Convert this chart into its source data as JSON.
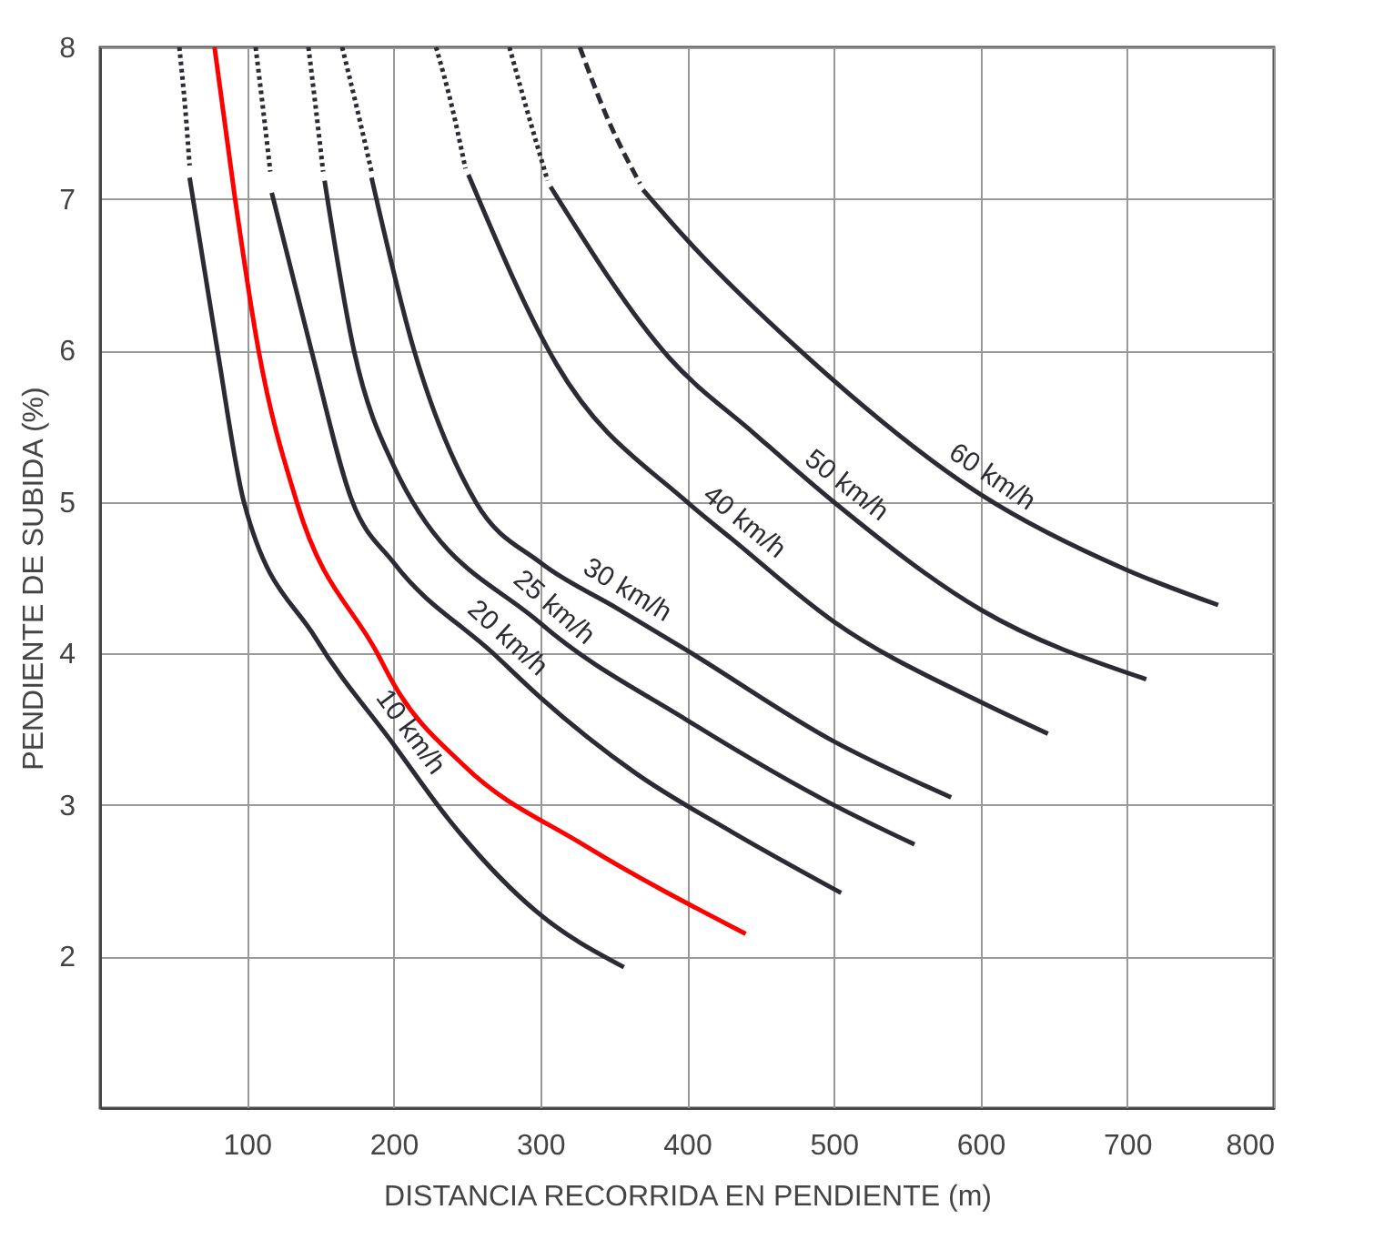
{
  "chart_data": {
    "type": "line",
    "xlabel": "DISTANCIA RECORRIDA EN PENDIENTE (m)",
    "ylabel": "PENDIENTE DE SUBIDA (%)",
    "xlim": [
      0,
      800
    ],
    "xticks": [
      100,
      200,
      300,
      400,
      500,
      600,
      700,
      800
    ],
    "ylim": [
      1,
      8
    ],
    "yticks": [
      2,
      3,
      4,
      5,
      6,
      7,
      8
    ],
    "grid": true,
    "legend": false,
    "marker": "none",
    "series": [
      {
        "color": "#2b2b33",
        "line_style": "dotted",
        "x": [
          54,
          58,
          61
        ],
        "values": [
          8,
          7.6,
          7.22
        ]
      },
      {
        "name": "10 km/h",
        "color": "#2b2b33",
        "line_style": "solid",
        "x": [
          61,
          80,
          98,
          147,
          200,
          238,
          297,
          357
        ],
        "values": [
          7.14,
          6,
          5,
          4.1,
          3.4,
          2.9,
          2.3,
          1.93
        ]
      },
      {
        "color": "#ff0000",
        "line_style": "solid",
        "x": [
          78,
          92,
          108,
          134,
          189,
          200,
          248,
          329,
          440
        ],
        "values": [
          8,
          7,
          6,
          5,
          4,
          3.8,
          3.26,
          2.74,
          2.15
        ]
      },
      {
        "color": "#2b2b33",
        "line_style": "dotted",
        "x": [
          106,
          111,
          116
        ],
        "values": [
          8,
          7.6,
          7.18
        ]
      },
      {
        "name": "20 km/h",
        "color": "#2b2b33",
        "line_style": "solid",
        "x": [
          117,
          144,
          172,
          200,
          268,
          300,
          365,
          431,
          505
        ],
        "values": [
          7.04,
          6,
          5,
          4.6,
          4,
          3.71,
          3.21,
          2.82,
          2.42
        ]
      },
      {
        "color": "#2b2b33",
        "line_style": "dotted",
        "x": [
          142,
          147,
          152
        ],
        "values": [
          8,
          7.6,
          7.18
        ]
      },
      {
        "name": "25 km/h",
        "color": "#2b2b33",
        "line_style": "solid",
        "x": [
          153,
          173,
          200,
          300,
          400,
          500,
          555
        ],
        "values": [
          7.12,
          6,
          5.24,
          4.2,
          3.56,
          3.0,
          2.74
        ]
      },
      {
        "color": "#2b2b33",
        "line_style": "dotted",
        "x": [
          165,
          175,
          185
        ],
        "values": [
          8,
          7.6,
          7.18
        ]
      },
      {
        "name": "30 km/h",
        "color": "#2b2b33",
        "line_style": "solid",
        "x": [
          185,
          214,
          256,
          300,
          352,
          400,
          500,
          580
        ],
        "values": [
          7.14,
          6,
          5,
          4.6,
          4.3,
          4.02,
          3.42,
          3.05
        ]
      },
      {
        "color": "#2b2b33",
        "line_style": "dotted",
        "x": [
          229,
          240,
          249
        ],
        "values": [
          8,
          7.6,
          7.2
        ]
      },
      {
        "name": "40 km/h",
        "color": "#2b2b33",
        "line_style": "solid",
        "x": [
          251,
          311,
          400,
          430,
          500,
          600,
          646
        ],
        "values": [
          7.16,
          5.91,
          5.0,
          4.76,
          4.21,
          3.68,
          3.47
        ]
      },
      {
        "color": "#2b2b33",
        "line_style": "dotted",
        "x": [
          279,
          292,
          305
        ],
        "values": [
          8,
          7.55,
          7.12
        ]
      },
      {
        "name": "50 km/h",
        "color": "#2b2b33",
        "line_style": "solid",
        "x": [
          307,
          388,
          446,
          500,
          600,
          713
        ],
        "values": [
          7.08,
          5.95,
          5.45,
          5.0,
          4.29,
          3.83
        ]
      },
      {
        "color": "#2b2b33",
        "line_style": "dashed",
        "x": [
          327,
          345,
          368
        ],
        "values": [
          8,
          7.55,
          7.1
        ]
      },
      {
        "name": "60 km/h",
        "color": "#2b2b33",
        "line_style": "solid",
        "x": [
          370,
          400,
          477,
          600,
          700,
          762
        ],
        "values": [
          7.06,
          6.73,
          6.0,
          5.05,
          4.55,
          4.32
        ]
      }
    ]
  }
}
